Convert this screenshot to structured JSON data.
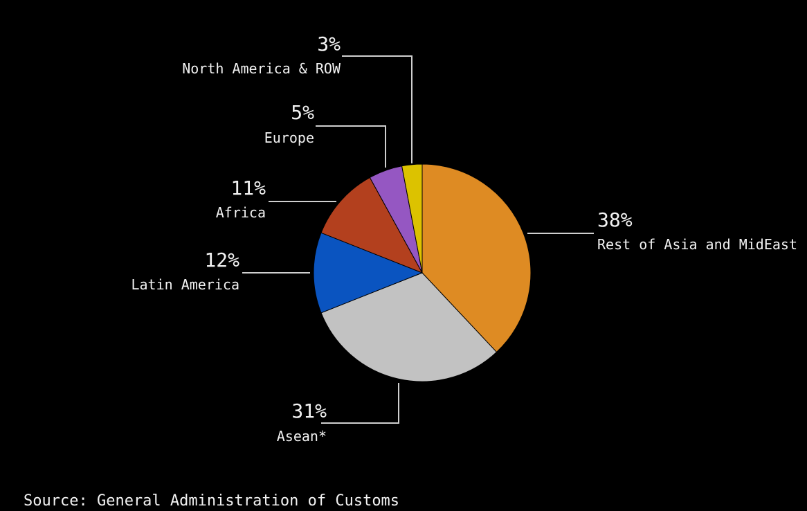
{
  "source": "Source: General Administration of Customs",
  "colors": {
    "background": "#000000",
    "text": "#f2f2f2",
    "leader": "#cfcfcf"
  },
  "chart_data": {
    "type": "pie",
    "start_angle_deg": 0,
    "direction": "clockwise",
    "slices": [
      {
        "key": "rest-of-asia",
        "label": "Rest of Asia and MidEast",
        "pct_label": "38%",
        "value": 38,
        "color": "#de8b23"
      },
      {
        "key": "asean",
        "label": "Asean*",
        "pct_label": "31%",
        "value": 31,
        "color": "#c2c2c2"
      },
      {
        "key": "latin-america",
        "label": "Latin America",
        "pct_label": "12%",
        "value": 12,
        "color": "#0a54c0"
      },
      {
        "key": "africa",
        "label": "Africa",
        "pct_label": "11%",
        "value": 11,
        "color": "#b3401e"
      },
      {
        "key": "europe",
        "label": "Europe",
        "pct_label": "5%",
        "value": 5,
        "color": "#9557c2"
      },
      {
        "key": "north-america-row",
        "label": "North America & ROW",
        "pct_label": "3%",
        "value": 3,
        "color": "#dcc200"
      }
    ]
  }
}
